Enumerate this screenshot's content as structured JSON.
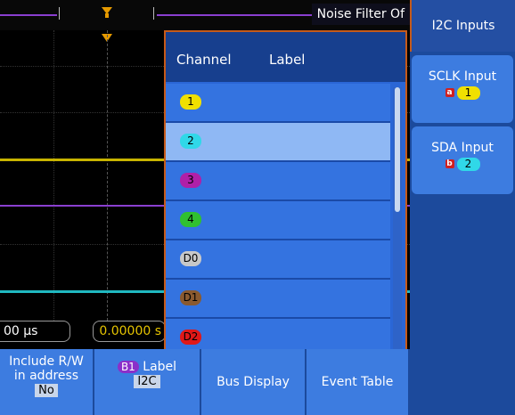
{
  "header": {
    "title": "Noise Filter Of"
  },
  "colors": {
    "ch1": "#f0e000",
    "ch2": "#30d8e8",
    "ch3": "#b020a8",
    "ch4": "#30c030",
    "d0": "#c8c8c8",
    "d1": "#8a5a30",
    "d2": "#e01818",
    "accent": "#c55a1a",
    "menu": "#3d7ce0"
  },
  "time": {
    "left": "00 µs",
    "right": "0.00000 s"
  },
  "popup": {
    "col_channel": "Channel",
    "col_label": "Label",
    "items": [
      {
        "id": "1",
        "color": "#f0e000"
      },
      {
        "id": "2",
        "color": "#30d8e8"
      },
      {
        "id": "3",
        "color": "#b020a8"
      },
      {
        "id": "4",
        "color": "#30c030"
      },
      {
        "id": "D0",
        "color": "#c8c8c8"
      },
      {
        "id": "D1",
        "color": "#8a5a30"
      },
      {
        "id": "D2",
        "color": "#e01818"
      }
    ],
    "selected_index": 1
  },
  "side": {
    "title": "I2C Inputs",
    "sclk": {
      "label": "SCLK Input",
      "tag": "a",
      "value": "1"
    },
    "sda": {
      "label": "SDA Input",
      "tag": "b",
      "value": "2"
    }
  },
  "bottom": {
    "rw_line1": "Include R/W",
    "rw_line2": "in address",
    "rw_value": "No",
    "label_tag": "B1",
    "label_text": "Label",
    "label_value": "I2C",
    "bus_display": "Bus Display",
    "event_table": "Event Table"
  }
}
